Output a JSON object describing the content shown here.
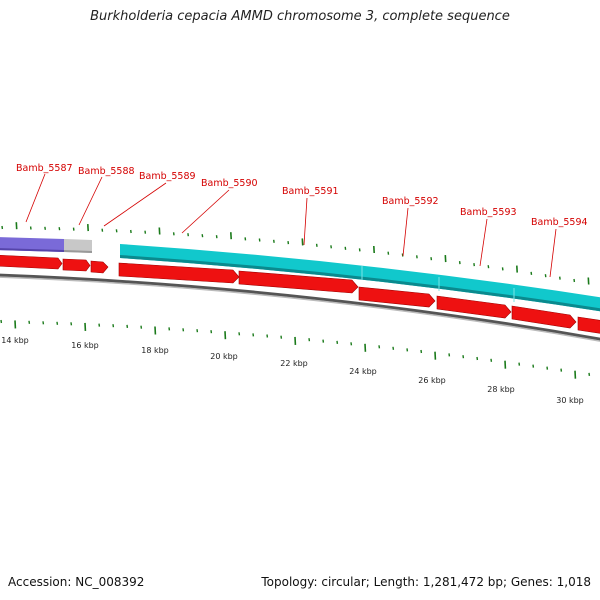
{
  "title": "Burkholderia cepacia AMMD chromosome 3, complete sequence",
  "accession_text": "Accession: NC_008392",
  "stats_text": "Topology: circular; Length: 1,281,472 bp; Genes: 1,018",
  "colors": {
    "gene_label": "#d40000",
    "cds_arrow": "#ee1111",
    "band_teal": "#11c8cc",
    "band_purple": "#7a6ad8",
    "band_gray": "#c8c8c8",
    "tick": "#1a7a1a",
    "backbone": "#888888"
  },
  "gene_labels": [
    "Bamb_5587",
    "Bamb_5588",
    "Bamb_5589",
    "Bamb_5590",
    "Bamb_5591",
    "Bamb_5592",
    "Bamb_5593",
    "Bamb_5594"
  ],
  "kbp_labels": [
    "14 kbp",
    "16 kbp",
    "18 kbp",
    "20 kbp",
    "22 kbp",
    "24 kbp",
    "26 kbp",
    "28 kbp",
    "30 kbp"
  ]
}
